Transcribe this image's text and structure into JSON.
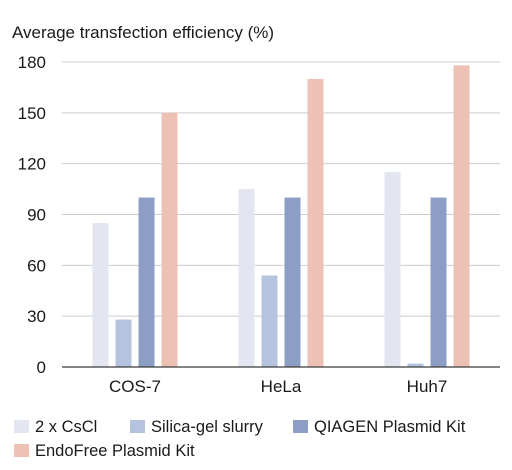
{
  "chart_data": {
    "type": "bar",
    "title": "",
    "ylabel": "Average transfection efficiency (%)",
    "xlabel": "",
    "categories": [
      "COS-7",
      "HeLa",
      "Huh7"
    ],
    "series": [
      {
        "name": "2 x CsCl",
        "color": "#e3e6f1",
        "values": [
          85,
          105,
          115
        ]
      },
      {
        "name": "Silica-gel slurry",
        "color": "#b6c3df",
        "values": [
          28,
          54,
          2
        ]
      },
      {
        "name": "QIAGEN Plasmid Kit",
        "color": "#8c9ec4",
        "values": [
          100,
          100,
          100
        ]
      },
      {
        "name": "EndoFree Plasmid Kit",
        "color": "#edc2b4",
        "values": [
          150,
          170,
          178
        ]
      }
    ],
    "ylim": [
      0,
      180
    ],
    "yticks": [
      0,
      30,
      60,
      90,
      120,
      150,
      180
    ],
    "grid": true,
    "legend_position": "bottom"
  }
}
